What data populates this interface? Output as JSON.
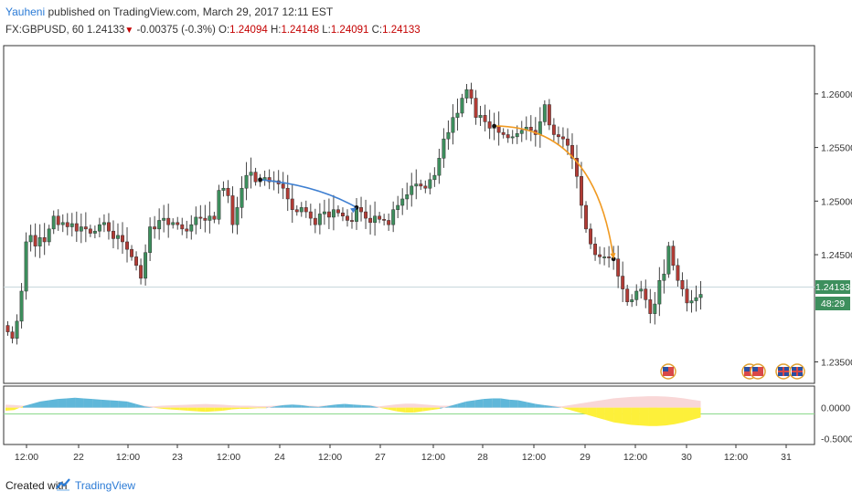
{
  "header": {
    "author": "Yauheni",
    "published_text": "published on TradingView.com, March 29, 2017 12:11 EST",
    "symbol": "FX:GBPUSD, 60",
    "last": "1.24133",
    "change": "-0.00375 (-0.3%)",
    "o_label": "O:",
    "o_value": "1.24094",
    "h_label": "H:",
    "h_value": "1.24148",
    "l_label": "L:",
    "l_value": "1.24091",
    "c_label": "C:",
    "c_value": "1.24133"
  },
  "footer": {
    "created_with": "Created with",
    "brand": "TradingView"
  },
  "colors": {
    "up": "#3d8f5d",
    "down": "#b23b35",
    "blue_arrow": "#3e7fd1",
    "orange_arrow": "#f09a22",
    "osc_blue": "#5fb7d9",
    "osc_yellow": "#fdf03a",
    "osc_pink": "#f7c6c6",
    "zero_line": "#8cd98c"
  },
  "chart_data": [
    {
      "type": "candlestick",
      "symbol": "FX:GBPUSD",
      "interval": "60",
      "ylim": [
        1.233,
        1.2645
      ],
      "y_ticks": [
        "1.26000",
        "1.25500",
        "1.25000",
        "1.24500",
        "1.23500"
      ],
      "last_price_label": "1.24133",
      "countdown_label": "48:29",
      "x_ticks": [
        "12:00",
        "22",
        "12:00",
        "23",
        "12:00",
        "24",
        "12:00",
        "27",
        "12:00",
        "28",
        "12:00",
        "29",
        "12:00",
        "30",
        "12:00",
        "31"
      ],
      "closes": [
        1.2378,
        1.2372,
        1.2388,
        1.2416,
        1.2462,
        1.2468,
        1.2458,
        1.2466,
        1.2462,
        1.2474,
        1.2486,
        1.2478,
        1.248,
        1.2476,
        1.2479,
        1.2472,
        1.2476,
        1.2474,
        1.247,
        1.2472,
        1.2478,
        1.248,
        1.2472,
        1.2465,
        1.2468,
        1.2462,
        1.2455,
        1.2448,
        1.244,
        1.2428,
        1.2452,
        1.2476,
        1.2474,
        1.2482,
        1.2484,
        1.2478,
        1.248,
        1.2478,
        1.2474,
        1.2472,
        1.2478,
        1.2485,
        1.2484,
        1.2482,
        1.2486,
        1.2483,
        1.251,
        1.2512,
        1.2505,
        1.2478,
        1.2494,
        1.2512,
        1.2524,
        1.2527,
        1.2518,
        1.252,
        1.2522,
        1.2518,
        1.2519,
        1.2516,
        1.2512,
        1.2502,
        1.2492,
        1.249,
        1.2494,
        1.249,
        1.2484,
        1.2478,
        1.2488,
        1.249,
        1.2485,
        1.2492,
        1.2489,
        1.2486,
        1.2482,
        1.2481,
        1.2494,
        1.249,
        1.2484,
        1.248,
        1.2486,
        1.2483,
        1.2482,
        1.2478,
        1.2492,
        1.2496,
        1.2502,
        1.2506,
        1.2514,
        1.2516,
        1.2514,
        1.2512,
        1.252,
        1.2524,
        1.254,
        1.2558,
        1.2564,
        1.2578,
        1.2582,
        1.2596,
        1.2604,
        1.2596,
        1.2578,
        1.258,
        1.2574,
        1.2568,
        1.257,
        1.2564,
        1.2562,
        1.2559,
        1.256,
        1.2563,
        1.2566,
        1.2569,
        1.2566,
        1.2562,
        1.2574,
        1.259,
        1.2571,
        1.2562,
        1.256,
        1.2558,
        1.2552,
        1.254,
        1.2523,
        1.2496,
        1.2474,
        1.246,
        1.245,
        1.2448,
        1.2448,
        1.2447,
        1.2446,
        1.243,
        1.2418,
        1.2406,
        1.2408,
        1.2416,
        1.2418,
        1.2408,
        1.2395,
        1.2404,
        1.2426,
        1.2432,
        1.2458,
        1.244,
        1.2426,
        1.2418,
        1.2405,
        1.2407,
        1.241,
        1.2413
      ],
      "annotations": [
        {
          "type": "arrow",
          "color": "blue",
          "from_bar": 55,
          "to_bar": 76
        },
        {
          "type": "arrow",
          "color": "orange",
          "from_bar": 106,
          "to_bar": 132
        }
      ]
    },
    {
      "type": "area",
      "name": "oscillator",
      "y_ticks": [
        "0.0000",
        "-0.5000"
      ],
      "ylim": [
        -0.6,
        0.35
      ],
      "values": [
        -0.05,
        -0.04,
        0.02,
        0.06,
        0.1,
        0.12,
        0.14,
        0.15,
        0.16,
        0.15,
        0.14,
        0.13,
        0.12,
        0.11,
        0.1,
        0.06,
        0.02,
        0.0,
        -0.02,
        -0.03,
        -0.04,
        -0.05,
        -0.06,
        -0.07,
        -0.06,
        -0.05,
        -0.03,
        -0.02,
        -0.02,
        -0.01,
        -0.01,
        0.02,
        0.04,
        0.05,
        0.04,
        0.02,
        0.01,
        0.03,
        0.05,
        0.06,
        0.05,
        0.04,
        0.03,
        0.0,
        -0.03,
        -0.06,
        -0.08,
        -0.08,
        -0.06,
        -0.04,
        -0.02,
        0.02,
        0.06,
        0.1,
        0.12,
        0.14,
        0.15,
        0.15,
        0.13,
        0.12,
        0.09,
        0.06,
        0.04,
        0.02,
        0.0,
        -0.04,
        -0.08,
        -0.12,
        -0.16,
        -0.2,
        -0.24,
        -0.26,
        -0.28,
        -0.29,
        -0.3,
        -0.3,
        -0.29,
        -0.27,
        -0.24,
        -0.2,
        -0.16
      ]
    }
  ]
}
